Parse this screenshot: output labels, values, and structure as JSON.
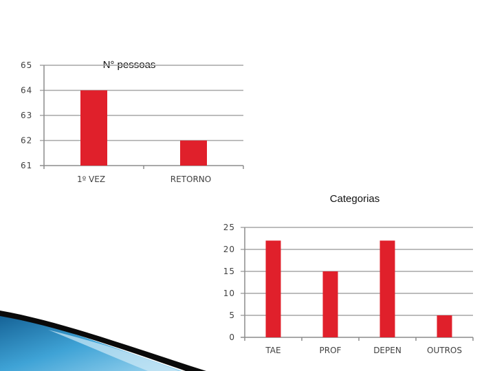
{
  "chart_data": [
    {
      "type": "bar",
      "title": "N° pessoas",
      "categories": [
        "1º VEZ",
        "RETORNO"
      ],
      "values": [
        64,
        62
      ],
      "ylim": [
        61,
        65
      ],
      "yticks": [
        61,
        62,
        63,
        64,
        65
      ],
      "xlabel": "",
      "ylabel": "",
      "grid": true,
      "legend": "none",
      "bar_color": "#e0202b"
    },
    {
      "type": "bar",
      "title": "Categorias",
      "categories": [
        "TAE",
        "PROF",
        "DEPEN",
        "OUTROS"
      ],
      "values": [
        22,
        15,
        22,
        5
      ],
      "ylim": [
        0,
        25
      ],
      "yticks": [
        0,
        5,
        10,
        15,
        20,
        25
      ],
      "xlabel": "",
      "ylabel": "",
      "grid": true,
      "legend": "none",
      "bar_color": "#e0202b"
    }
  ],
  "decoration": {
    "swoosh_colors": [
      "#1b6fa3",
      "#4fb0dc",
      "#0a0a0a"
    ]
  }
}
